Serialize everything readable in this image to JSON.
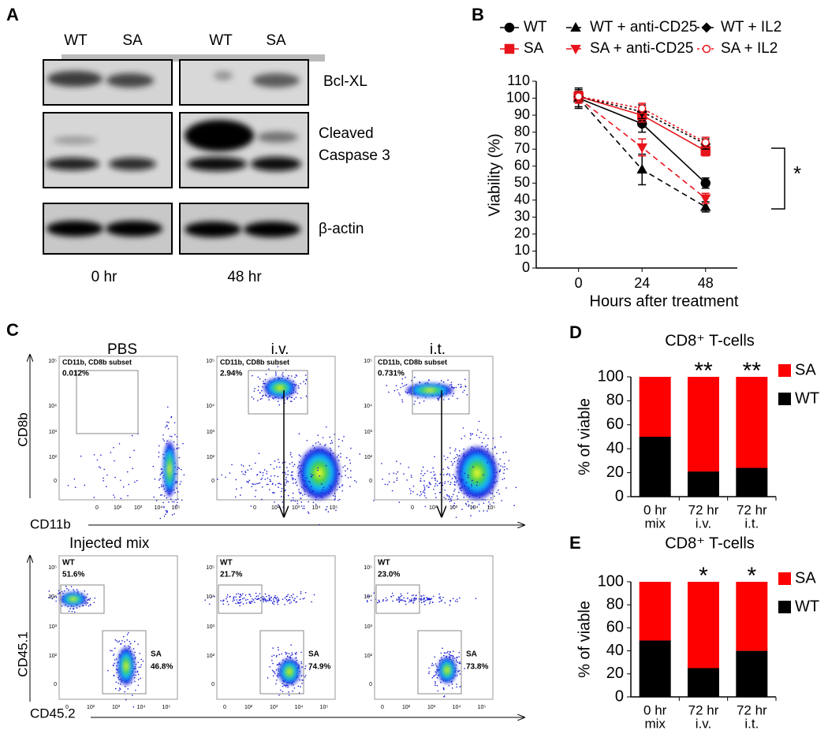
{
  "blot": {
    "panel": "A",
    "lanes": [
      "WT",
      "SA",
      "WT",
      "SA"
    ],
    "bcl": "Bcl-XL",
    "caspase": [
      "Cleaved",
      "Caspase 3"
    ],
    "actin": "β-actin",
    "timepoints": [
      "0 hr",
      "48 hr"
    ]
  },
  "flow": {
    "panel": "C",
    "columns": [
      "PBS",
      "i.v.",
      "i.t."
    ],
    "top_y_label": "CD8b",
    "top_x_label": "CD11b",
    "bottom_title": "Injected mix",
    "bottom_y_label": "CD45.1",
    "bottom_x_label": "CD45.2",
    "tick_labels": [
      "0",
      "10²",
      "10³",
      "10⁴",
      "10⁵"
    ],
    "top_gates": [
      {
        "name": "CD11b, CD8b subset",
        "percent": "0.012%"
      },
      {
        "name": "CD11b, CD8b subset",
        "percent": "2.94%"
      },
      {
        "name": "CD11b, CD8b subset",
        "percent": "0.731%"
      }
    ],
    "bottom_gates": [
      {
        "wt": "WT",
        "wt_percent": "51.6%",
        "sa": "SA",
        "sa_percent": "46.8%"
      },
      {
        "wt": "WT",
        "wt_percent": "21.7%",
        "sa": "SA",
        "sa_percent": "74.9%"
      },
      {
        "wt": "WT",
        "wt_percent": "23.0%",
        "sa": "SA",
        "sa_percent": "73.8%"
      }
    ]
  },
  "chart_data": [
    {
      "type": "line",
      "panel": "B",
      "x_label": "Hours after treatment",
      "y_label": "Viability (%)",
      "x": [
        0,
        24,
        48
      ],
      "xlim": [
        -16,
        60
      ],
      "xticks": [
        0,
        24,
        48
      ],
      "ylim": [
        0,
        110
      ],
      "yticks": [
        0,
        10,
        20,
        30,
        40,
        50,
        60,
        70,
        80,
        90,
        100,
        110
      ],
      "annotation": "*",
      "series": [
        {
          "name": "WT",
          "color": "#000000",
          "line_style": "solid",
          "marker": "circle",
          "values": [
            100,
            85,
            50
          ],
          "errors": [
            6,
            5,
            3
          ]
        },
        {
          "name": "SA",
          "color": "#e8141c",
          "line_style": "solid",
          "marker": "square",
          "values": [
            101,
            90,
            69
          ],
          "errors": [
            3,
            4,
            3
          ]
        },
        {
          "name": "WT + anti-CD25",
          "color": "#000000",
          "line_style": "dashed",
          "marker": "triangle",
          "values": [
            100,
            58,
            36
          ],
          "errors": [
            5,
            9,
            3
          ]
        },
        {
          "name": "SA + anti-CD25",
          "color": "#e8141c",
          "line_style": "dashed",
          "marker": "triangle-down",
          "values": [
            100,
            71,
            41
          ],
          "errors": [
            3,
            5,
            3
          ]
        },
        {
          "name": "WT + IL2",
          "color": "#000000",
          "line_style": "dotted",
          "marker": "diamond",
          "values": [
            101,
            92,
            73
          ],
          "errors": [
            3,
            4,
            3
          ]
        },
        {
          "name": "SA + IL2",
          "color": "#e8141c",
          "line_style": "dotted",
          "marker": "open-circle",
          "values": [
            101,
            94,
            74
          ],
          "errors": [
            3,
            3,
            3
          ]
        }
      ]
    },
    {
      "type": "bar",
      "stacked": true,
      "panel": "D",
      "title": "CD8⁺ T-cells",
      "y_label": "% of viable",
      "categories": [
        "0 hr",
        "72 hr",
        "72 hr"
      ],
      "category_sublabels": [
        "mix",
        "i.v.",
        "i.t."
      ],
      "ylim": [
        0,
        100
      ],
      "yticks": [
        0,
        20,
        40,
        60,
        80,
        100
      ],
      "annotations": [
        null,
        "**",
        "**"
      ],
      "series": [
        {
          "name": "WT",
          "color": "#000000",
          "values": [
            50,
            21,
            24
          ]
        },
        {
          "name": "SA",
          "color": "#ff0000",
          "values": [
            50,
            79,
            76
          ]
        }
      ]
    },
    {
      "type": "bar",
      "stacked": true,
      "panel": "E",
      "title": "CD8⁺ T-cells",
      "y_label": "% of viable",
      "categories": [
        "0 hr",
        "72 hr",
        "72 hr"
      ],
      "category_sublabels": [
        "mix",
        "i.v.",
        "i.t."
      ],
      "ylim": [
        0,
        100
      ],
      "yticks": [
        0,
        20,
        40,
        60,
        80,
        100
      ],
      "annotations": [
        null,
        "*",
        "*"
      ],
      "series": [
        {
          "name": "WT",
          "color": "#000000",
          "values": [
            49,
            25,
            40
          ]
        },
        {
          "name": "SA",
          "color": "#ff0000",
          "values": [
            51,
            75,
            60
          ]
        }
      ]
    }
  ]
}
